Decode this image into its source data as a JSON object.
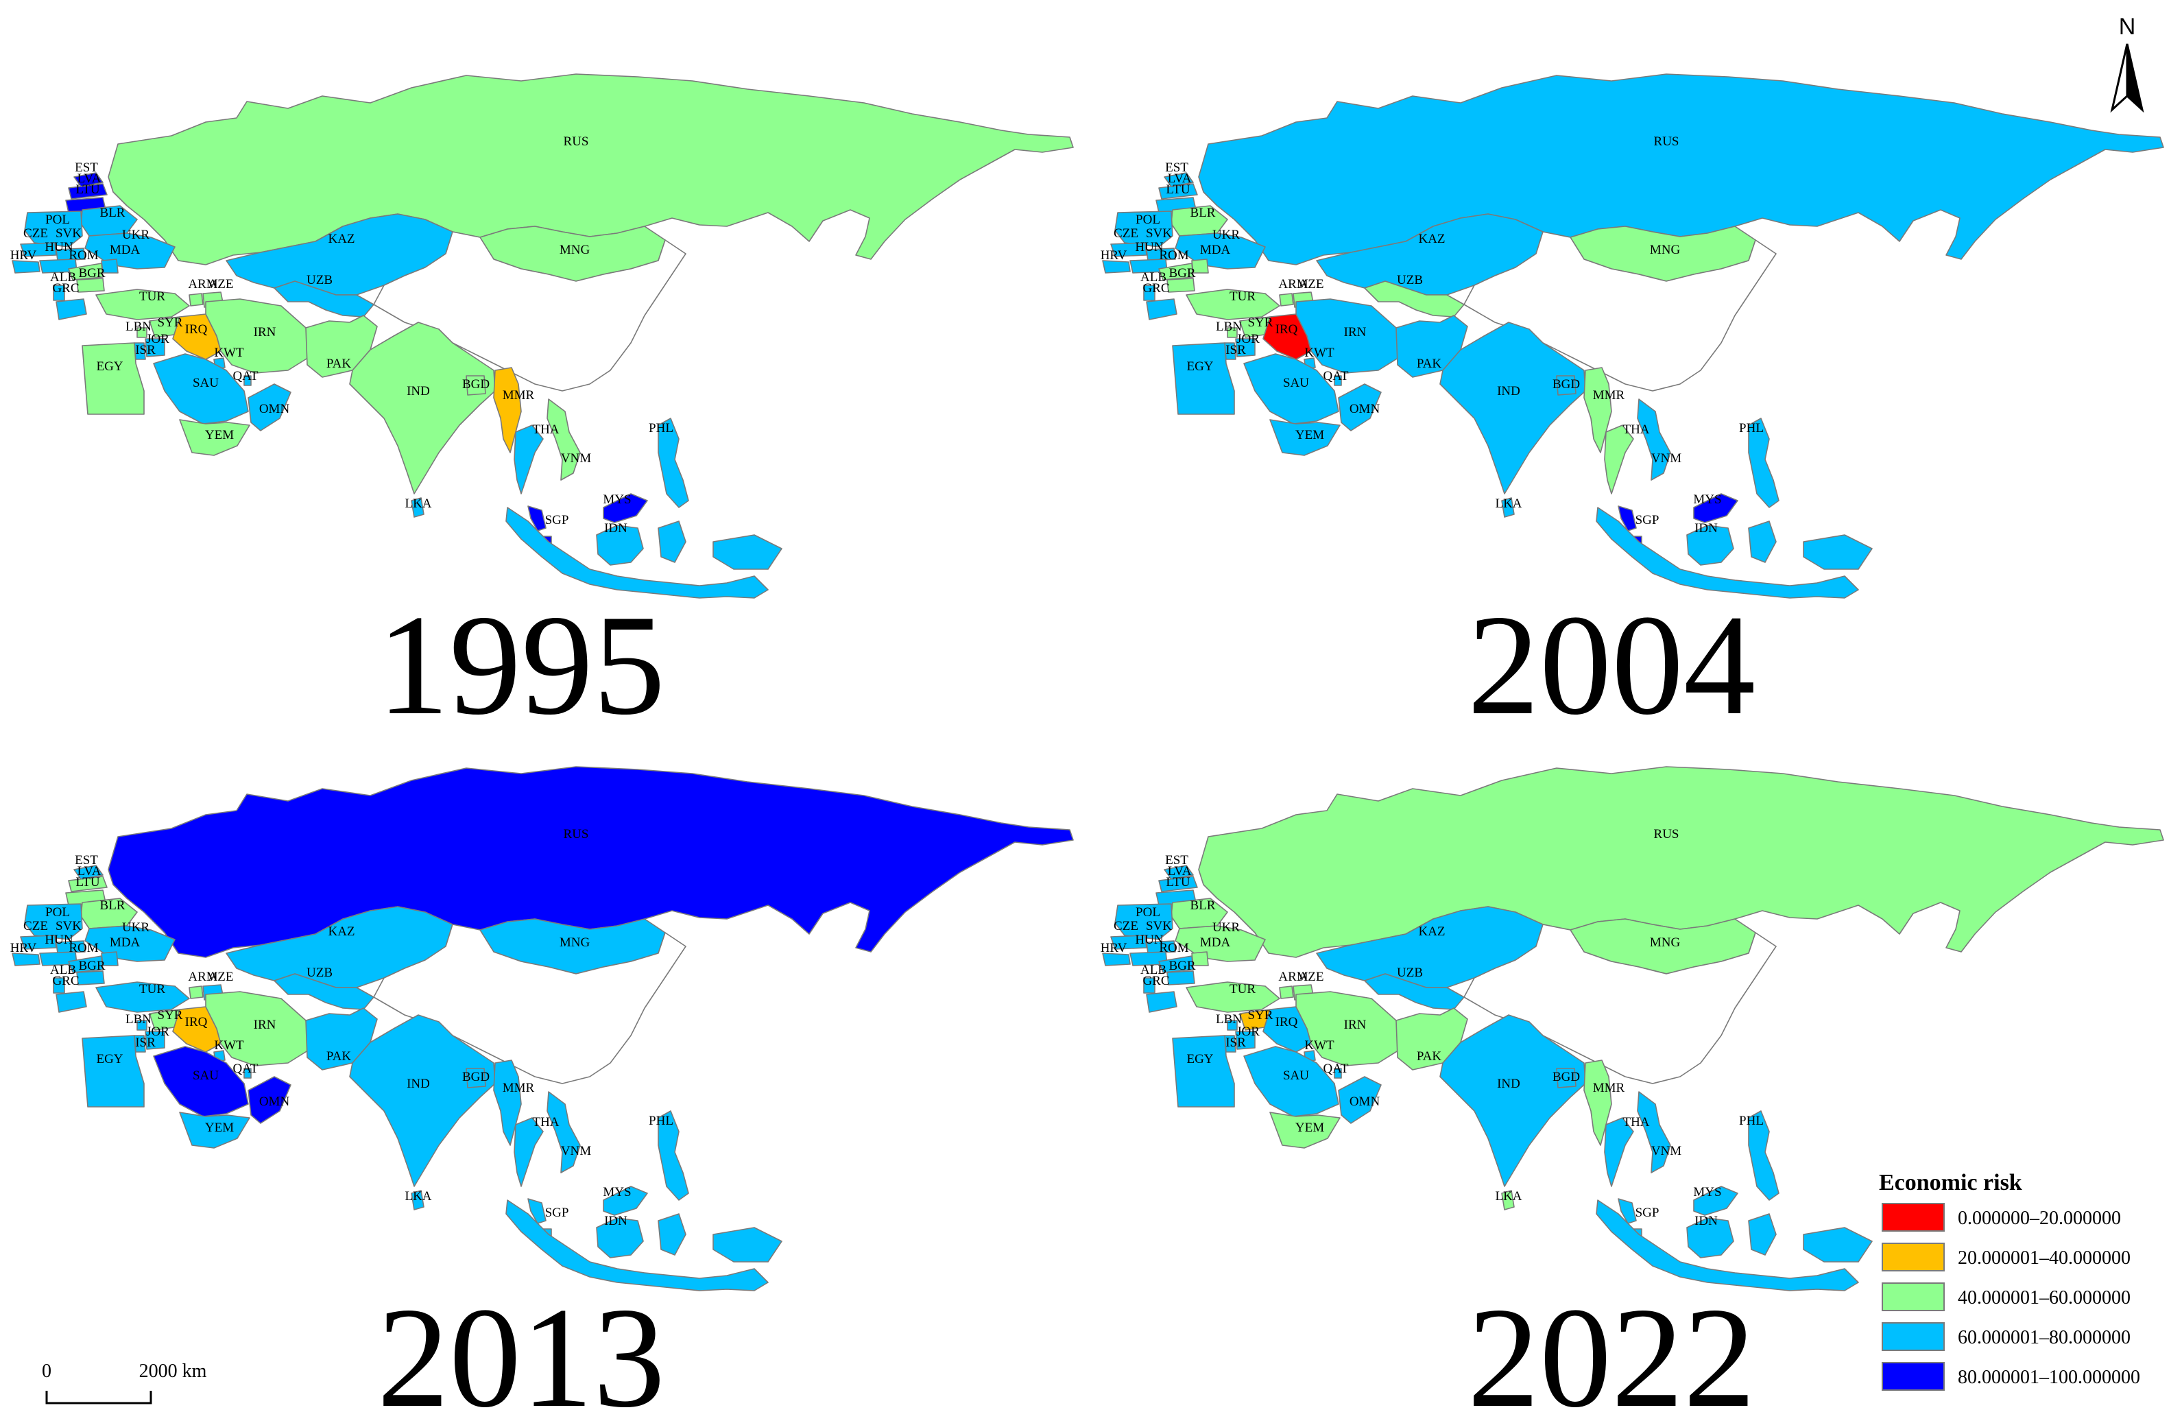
{
  "colors": {
    "bin_0": "#ff0000",
    "bin_1": "#ffc000",
    "bin_2": "#8fff8f",
    "bin_3": "#00bfff",
    "bin_4": "#0000ff",
    "border": "#7a7a7a"
  },
  "legend": {
    "title": "Economic risk",
    "items": [
      {
        "label": "0.000000–20.000000",
        "color": "#ff0000"
      },
      {
        "label": "20.000001–40.000000",
        "color": "#ffc000"
      },
      {
        "label": "40.000001–60.000000",
        "color": "#8fff8f"
      },
      {
        "label": "60.000001–80.000000",
        "color": "#00bfff"
      },
      {
        "label": "80.000001–100.000000",
        "color": "#0000ff"
      }
    ]
  },
  "north_arrow": {
    "label": "N"
  },
  "scale_bar": {
    "label_start": "0",
    "label_end": "2000 km"
  },
  "panels": [
    {
      "year": "1995",
      "countries": {
        "RUS": 2,
        "MNG": 2,
        "KAZ": 3,
        "UZB": 3,
        "CHN": null,
        "EST": 4,
        "LVA": 4,
        "LTU": 4,
        "POL": 3,
        "BLR": 3,
        "CZE": 3,
        "SVK": 3,
        "HUN": 3,
        "UKR": 3,
        "MDA": 3,
        "ROM": 2,
        "HRV": 3,
        "BGR": 2,
        "ALB": 3,
        "GRC": 3,
        "TUR": 2,
        "ARM": 2,
        "AZE": 2,
        "SYR": 2,
        "LBN": 2,
        "ISR": 3,
        "JOR": 3,
        "IRQ": 1,
        "IRN": 2,
        "KWT": 3,
        "SAU": 3,
        "QAT": 3,
        "OMN": 3,
        "YEM": 2,
        "EGY": 2,
        "PAK": 2,
        "IND": 2,
        "BGD": 2,
        "LKA": 3,
        "MMR": 1,
        "THA": 3,
        "VNM": 2,
        "MYS": 4,
        "SGP": 4,
        "IDN": 3,
        "PHL": 3
      }
    },
    {
      "year": "2004",
      "countries": {
        "RUS": 3,
        "MNG": 2,
        "KAZ": 3,
        "UZB": 2,
        "CHN": null,
        "EST": 3,
        "LVA": 3,
        "LTU": 3,
        "POL": 3,
        "BLR": 2,
        "CZE": 3,
        "SVK": 3,
        "HUN": 3,
        "UKR": 3,
        "MDA": 2,
        "ROM": 2,
        "HRV": 3,
        "BGR": 2,
        "ALB": 3,
        "GRC": 3,
        "TUR": 2,
        "ARM": 2,
        "AZE": 2,
        "SYR": 2,
        "LBN": 2,
        "ISR": 3,
        "JOR": 3,
        "IRQ": 0,
        "IRN": 3,
        "KWT": 3,
        "SAU": 3,
        "QAT": 3,
        "OMN": 3,
        "YEM": 3,
        "EGY": 3,
        "PAK": 3,
        "IND": 3,
        "BGD": 3,
        "LKA": 3,
        "MMR": 2,
        "THA": 2,
        "VNM": 3,
        "MYS": 4,
        "SGP": 4,
        "IDN": 3,
        "PHL": 3
      }
    },
    {
      "year": "2013",
      "countries": {
        "RUS": 4,
        "MNG": 3,
        "KAZ": 3,
        "UZB": 3,
        "CHN": null,
        "EST": 3,
        "LVA": 2,
        "LTU": 2,
        "POL": 3,
        "BLR": 2,
        "CZE": 3,
        "SVK": 3,
        "HUN": 3,
        "UKR": 3,
        "MDA": 3,
        "ROM": 3,
        "HRV": 3,
        "BGR": 3,
        "ALB": 3,
        "GRC": 3,
        "TUR": 3,
        "ARM": 2,
        "AZE": 3,
        "SYR": 2,
        "LBN": 3,
        "ISR": 3,
        "JOR": 3,
        "IRQ": 1,
        "IRN": 2,
        "KWT": 3,
        "SAU": 4,
        "QAT": 3,
        "OMN": 4,
        "YEM": 3,
        "EGY": 3,
        "PAK": 3,
        "IND": 3,
        "BGD": 3,
        "LKA": 3,
        "MMR": 3,
        "THA": 3,
        "VNM": 3,
        "MYS": 3,
        "SGP": 3,
        "IDN": 3,
        "PHL": 3
      }
    },
    {
      "year": "2022",
      "countries": {
        "RUS": 2,
        "MNG": 2,
        "KAZ": 3,
        "UZB": 3,
        "CHN": null,
        "EST": 3,
        "LVA": 3,
        "LTU": 3,
        "POL": 3,
        "BLR": 2,
        "CZE": 3,
        "SVK": 3,
        "HUN": 3,
        "UKR": 2,
        "MDA": 2,
        "ROM": 3,
        "HRV": 3,
        "BGR": 3,
        "ALB": 3,
        "GRC": 3,
        "TUR": 2,
        "ARM": 2,
        "AZE": 2,
        "SYR": 1,
        "LBN": 3,
        "ISR": 3,
        "JOR": 3,
        "IRQ": 3,
        "IRN": 2,
        "KWT": 3,
        "SAU": 3,
        "QAT": 3,
        "OMN": 3,
        "YEM": 2,
        "EGY": 3,
        "PAK": 2,
        "IND": 3,
        "BGD": 3,
        "LKA": 2,
        "MMR": 2,
        "THA": 3,
        "VNM": 3,
        "MYS": 3,
        "SGP": 3,
        "IDN": 3,
        "PHL": 3
      }
    }
  ]
}
